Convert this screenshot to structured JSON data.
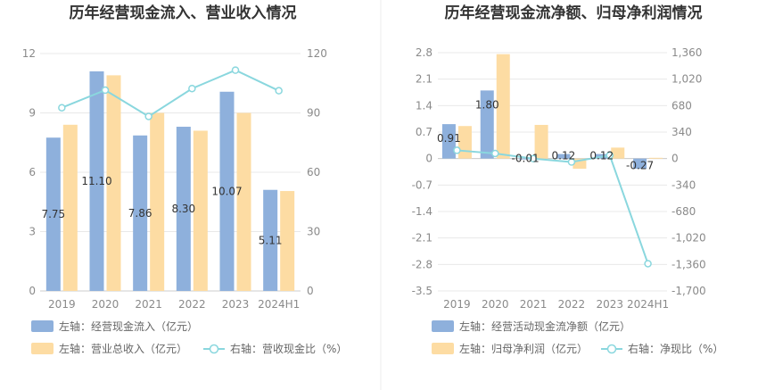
{
  "colors": {
    "bar_left": "#8eb0dc",
    "bar_right": "#fddca3",
    "line": "#8ad7de",
    "grid": "#e8e8e8",
    "divider": "#eeeeee"
  },
  "chart_data": [
    {
      "type": "bar",
      "title": "历年经营现金流入、营业收入情况",
      "categories": [
        "2019",
        "2020",
        "2021",
        "2022",
        "2023",
        "2024H1"
      ],
      "left_axis": {
        "ticks": [
          "0",
          "3",
          "6",
          "9",
          "12"
        ],
        "ylim": [
          0,
          12
        ]
      },
      "right_axis": {
        "ticks": [
          "0",
          "30",
          "60",
          "90",
          "120"
        ],
        "ylim": [
          0,
          120
        ]
      },
      "series": [
        {
          "name": "左轴：经营现金流入（亿元）",
          "axis": "left",
          "kind": "bar",
          "values": [
            7.75,
            11.1,
            7.86,
            8.3,
            10.07,
            5.11
          ],
          "labels": [
            "7.75",
            "11.10",
            "7.86",
            "8.30",
            "10.07",
            "5.11"
          ]
        },
        {
          "name": "左轴：营业总收入（亿元）",
          "axis": "left",
          "kind": "bar",
          "values": [
            8.4,
            10.9,
            9.0,
            8.1,
            9.0,
            5.05
          ]
        },
        {
          "name": "右轴：营收现金比（%）",
          "axis": "right",
          "kind": "line",
          "values": [
            92.6,
            101.5,
            88.2,
            102.3,
            111.6,
            101.2
          ]
        }
      ]
    },
    {
      "type": "bar",
      "title": "历年经营现金流净额、归母净利润情况",
      "categories": [
        "2019",
        "2020",
        "2021",
        "2022",
        "2023",
        "2024H1"
      ],
      "left_axis": {
        "ticks": [
          "2.8",
          "2.1",
          "1.4",
          "0.7",
          "0",
          "-0.7",
          "-1.4",
          "-2.1",
          "-2.8",
          "-3.5"
        ],
        "ylim": [
          -3.5,
          2.8
        ]
      },
      "right_axis": {
        "ticks": [
          "1,360",
          "1,020",
          "680",
          "340",
          "0",
          "-340",
          "-680",
          "-1,020",
          "-1,360",
          "-1,700"
        ],
        "ylim": [
          -1700,
          1360
        ]
      },
      "series": [
        {
          "name": "左轴：经营活动现金流净额（亿元）",
          "axis": "left",
          "kind": "bar",
          "values": [
            0.91,
            1.8,
            -0.01,
            0.12,
            0.12,
            -0.27
          ],
          "labels": [
            "0.91",
            "1.80",
            "-0.01",
            "0.12",
            "0.12",
            "-0.27"
          ]
        },
        {
          "name": "左轴：归母净利润（亿元）",
          "axis": "left",
          "kind": "bar",
          "values": [
            0.86,
            2.76,
            0.89,
            -0.27,
            0.29,
            0.02
          ]
        },
        {
          "name": "右轴：净现比（%）",
          "axis": "right",
          "kind": "line",
          "values": [
            105.8,
            65.2,
            -1.1,
            -44.4,
            41.4,
            -1350
          ]
        }
      ]
    }
  ]
}
